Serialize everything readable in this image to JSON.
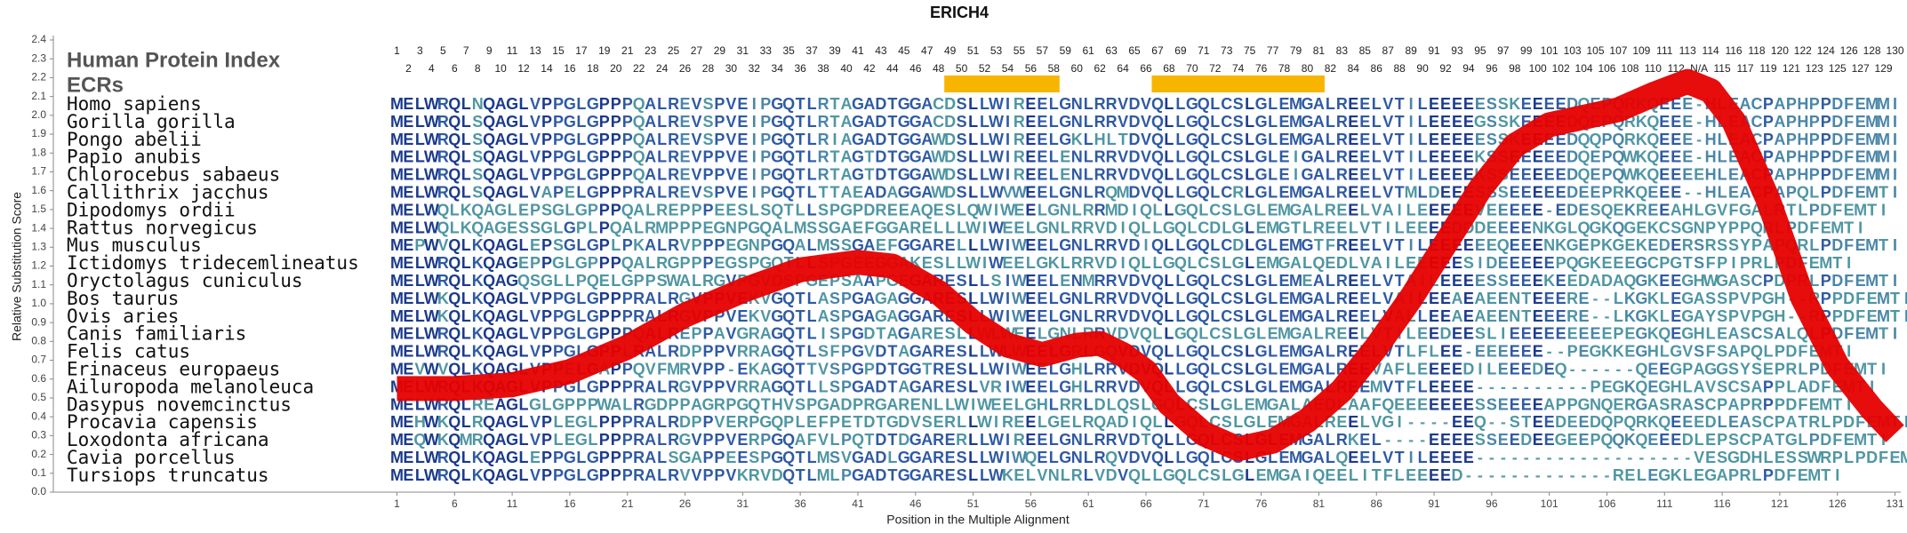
{
  "chart_data": {
    "type": "line",
    "title": "ERICH4",
    "ylabel": "Relative Substitution Score",
    "xlabel": "Position in the Multiple Alignment",
    "index_label": "Human Protein Index",
    "ecr_label": "ECRs",
    "ecr_color": "#f7b500",
    "ecrs": [
      [
        49,
        58
      ],
      [
        67,
        81
      ]
    ],
    "human_index": [
      1,
      2,
      3,
      4,
      5,
      6,
      7,
      8,
      9,
      10,
      11,
      12,
      13,
      14,
      15,
      16,
      17,
      18,
      19,
      20,
      21,
      22,
      23,
      24,
      25,
      26,
      27,
      28,
      29,
      30,
      31,
      32,
      33,
      34,
      35,
      36,
      37,
      38,
      39,
      40,
      41,
      42,
      43,
      44,
      45,
      46,
      47,
      48,
      49,
      50,
      51,
      52,
      53,
      54,
      55,
      56,
      57,
      58,
      59,
      60,
      61,
      62,
      63,
      64,
      65,
      66,
      67,
      68,
      69,
      70,
      71,
      72,
      73,
      74,
      75,
      76,
      77,
      78,
      79,
      80,
      81,
      82,
      83,
      84,
      85,
      86,
      87,
      88,
      89,
      90,
      91,
      92,
      93,
      94,
      95,
      96,
      97,
      98,
      99,
      100,
      101,
      102,
      103,
      104,
      105,
      106,
      107,
      108,
      109,
      110,
      111,
      112,
      113,
      "N/A",
      114,
      115,
      116,
      117,
      118,
      119,
      120,
      121,
      122,
      123,
      124,
      125,
      126,
      127,
      128,
      129,
      130
    ],
    "species": [
      {
        "name": "Homo sapiens",
        "sequence": "MELWRQLNQAGLVPPGLGPPPQALREVSPVEIPGQTLRTAGADTGGACDSLLWIREELGNLRRVDVQLLGQLCSLGLEMGALREELVTILEEEEESSKEEEEDQEPQRKQEEE-HLEACPAPHPPDFEMMI"
      },
      {
        "name": "Gorilla gorilla",
        "sequence": "MELWRQLSQAGLVPPGLGPPPQALREVSPVEIPGQTLRTAGADTGGACDSLLWIREELGNLRRVDVQLLGQLCSLGLEMGALREELVTILEEEEGSSKEEEEDQEPQRKQEEE-HLEACPAPHPPDFEMMI"
      },
      {
        "name": "Pongo abelii",
        "sequence": "MELWRQLSQAGLVPPGLGPPPQALREVSPVEIPGQTLRIAGADTGGAWDSLLWIREELGKLHLTDVQLLGQLCSLGLEMGALREELVTILEEEEESSKEEEEDQQPQRKQEEE-HLEACPAPHPPDFEMMI"
      },
      {
        "name": "Papio anubis",
        "sequence": "MELWRQLSQAGLVPPGLGPPPQALREVPPVEIPGQTLRTAGTDTGGAWDSLLWIREELENLRRVDVQLLGQLCSLGLEIGALREELVTILEEEEKSSEEEEEDQEPQWKQEEE-HLEACPAPHPPDFEMMI"
      },
      {
        "name": "Chlorocebus sabaeus",
        "sequence": "MELWRQLSQAGLVPPGLGPPPQALREVPPVEIPGQTLRTAGTDTGGAWDSLLWIREELENLRRVDVQLLGQLCSLGLEIGALREELVTILEEEEKSSEEEEEDQEPQWKQEEEEHLEACPAPHPPDFEMMI"
      },
      {
        "name": "Callithrix jacchus",
        "sequence": "MELWRQLSQAGLVAPELGPPPRALREVSPVEIPGQTLTTAEADAGGAWDSLLWVWEELGNLRQMDVQLLGQLCRLGLEMGALREELVTMLDEEESSSEEEEEDEEPRKQEEE--HLEACPAPQLPDFEMTI"
      },
      {
        "name": "Dipodomys ordii",
        "sequence": "MELWQLKQAGLEPSGLGPPPQALREPPPEESLSQTLLSPGPDREEAQESLQWIWEELGNLRRMDIQLLGQLCSLGLEMGALREELVAILEEEEEVEEEEE-EDESQEKREEAHLGVFGALRTLPDFEMTI"
      },
      {
        "name": "Rattus norvegicus",
        "sequence": "MELWQLKQAGESSGLGPLPQALRMPPPEGNPGQALMSSGAEFGGARELLLWIWEELGNLRRVDIQLLGQLCDLGLEMGTLREELVTILEEEEDDDEEEENKGLQGKQGEKCSGNPYPPQRLPDFEMTI"
      },
      {
        "name": "Mus musculus",
        "sequence": "MEPWVQLKQAGLEPSGLGPLPKALRVPPPEGNPGQALMSSGAEFGGARELLLWIWEELGNLRRVDIQLLGQLCDLGLEMGTFREELVTILEEEEEEQEEENKGEPKGEKEDERSRSSYPAPQRLPDFEMTI"
      },
      {
        "name": "Ictidomys tridecemlineatus",
        "sequence": "MELWRQLKQAGEPPGLGPPPQALRGPPPEGSPGQTLLSPGEEGGAKESLLWIWEELGKLRRVDIQLLGQLCSLGLEMGALQEDLVAILEEEEESIDEEEEEPQGKEEEGCPGTSFPIPRLPDFEMTI"
      },
      {
        "name": "Oryctolagus cuniculus",
        "sequence": "MELWRQLKQAGQSGLLPQELGPPSWALRGVPGVDSPGEPSAAPGEGARESLLSIWEELENMRRVDVQLLGQLCSLGLEMEALREELVTAILEEEESSEEEKEEDADAQGKEEGHWGASCPDPRLPDFEMTI"
      },
      {
        "name": "Bos taurus",
        "sequence": "MELWKQLKQAGLVPPGLGPPPRALRGVPPVEKVGQTLASPGAGAGGARESLLWIWEELGNLRRVDVQLLGQLCSLGLEMGALREELVAILEEAEAEENTEEERE--LKGKLEGASSPVPGH--RPPDFEMTI"
      },
      {
        "name": "Ovis aries",
        "sequence": "MELWKQLKQAGLVPPGLGPPPRALRGVPPVEKVGQTLASPGAGAGGARESLLWIWEELGNLRRVDVQLLGQLCSLGLEMGALREELVALLEEAEAEENTEEERE--LKGKLEGAYSPVPGH--RPPDFEMTI"
      },
      {
        "name": "Canis familiaris",
        "sequence": "MELWRQLKQAGLVPPGLGPPPQALREPPAVGRAGQTLISPGDTAGARESLLWLWEELGNLRRVDVQLLGQLCSLGLEMGALREELVTILEEDEESLIEEEEEEEEEPEGKQEGHLEASCSALQLPDFEMTI"
      },
      {
        "name": "Felis catus",
        "sequence": "MELWRQLKQAGLVPPGLGPPLRALRDPPPVRRAGQTLSFPGVDTAGARESLLWLWEELGRLGQVDVQLLGQLCSLGLEMGALREELVTLFLEE-EEEEEE--PEGKKEGHLGVSFSAPQLPDFEMTI"
      },
      {
        "name": "Erinaceus europaeus",
        "sequence": "MEVWVQLKQAGLVPPELGAPPQVFMRVPP-EKAGQTTVSPGPDTGGTRESLLWIWEELGHLRRVDVQLLGQLCSLGLEMGALREEVAFLEEEEDILEEEDEQ------QEEGPAGGSYSEPRLPDFEMTI"
      },
      {
        "name": "Ailuropoda melanoleuca",
        "sequence": "MELWRQLKQAGLVPPGLGPPPRALRGVPPVRRAGQTLLSPGADTAGARESLVRIWEELGHLRRVDVQLLGQLCSLGLEMGALREEMVTFLEEEE----------PEGKQEGHLAVSCSAPPLADFEMTI"
      },
      {
        "name": "Dasypus novemcinctus",
        "sequence": "MELWRQLREAGLGLGPPPWALRGDPPAGRPGQTHVSPGADPRGARENLLWIWEELGHLRRLDLQSLGQLCSLGLEMGALAEDLAAFQEEEEEEESSEEEEAPPGNQERGASRASCPAPRPPDFEMTI"
      },
      {
        "name": "Procavia capensis",
        "sequence": "MEHWKQLRQAGLVPLEGLPPPRALRDPPVERPGQPLEFPETDTGDVSERLLWIREELGELRQADIQLLGQLCSLGLEMGALREELVGI----EEQ--STEEDEEDQPQRKQEEEDLEASCPATRLPDFEMTI"
      },
      {
        "name": "Loxodonta africana",
        "sequence": "MEQWKQMRQAGLVPLEGLPPPRALRGVPPVERPGQAFVLPQTDTDGARERLLWIREELGNLRRVDTQLLGQLCSLGLEMGALRKEL----EEEESSEEDEEGEEPQQKQEEEDLEPSCPATGLPDFEMTI"
      },
      {
        "name": "Cavia porcellus",
        "sequence": "MELWRQLKQAGLEPPGLGPPPRALSGAPPEESPGQTLMSVGADLGGARESLLWIWQELGNLRQVDVQLLGQLCSLGLEMGALQEELVTILEEEE-------------------VESGDHLESSWRPLPDFEMTI"
      },
      {
        "name": "Tursiops truncatus",
        "sequence": "MELWRQLKQAGLVPPGLGPPPRALRVVPPVKRVDQTLMLPGADTGGARESLLWKELVNLRLVDVQLLGQLCSLGLEMGAIQEELITFLEEEED-------------RELEGKLEGAPRLPDFEMTI"
      }
    ],
    "series": [
      {
        "color": "#e60000",
        "x": [
          1,
          6,
          11,
          16,
          21,
          26,
          31,
          36,
          41,
          44,
          48,
          51,
          54,
          57,
          60,
          62,
          64,
          66,
          68,
          71,
          74,
          77,
          80,
          83,
          86,
          89,
          92,
          95,
          98,
          101,
          104,
          107,
          110,
          113,
          115,
          117,
          120,
          123,
          126,
          129,
          131
        ],
        "values": [
          0.55,
          0.55,
          0.57,
          0.64,
          0.77,
          0.94,
          1.07,
          1.18,
          1.22,
          1.2,
          1.06,
          0.9,
          0.78,
          0.73,
          0.78,
          0.79,
          0.73,
          0.64,
          0.47,
          0.31,
          0.23,
          0.27,
          0.38,
          0.54,
          0.77,
          1.03,
          1.32,
          1.61,
          1.84,
          1.95,
          1.99,
          2.03,
          2.11,
          2.18,
          2.13,
          1.97,
          1.55,
          1.03,
          0.67,
          0.44,
          0.31
        ]
      }
    ],
    "xlim": [
      0.5,
      131.5
    ],
    "ylim": [
      0,
      2.4
    ],
    "xticks": [
      1,
      6,
      11,
      16,
      21,
      26,
      31,
      36,
      41,
      46,
      51,
      56,
      61,
      66,
      71,
      76,
      81,
      86,
      91,
      96,
      101,
      106,
      111,
      116,
      121,
      126,
      131
    ],
    "yticks": [
      {
        "value": 0,
        "label": "0.0"
      },
      0.1,
      0.2,
      0.3,
      0.4,
      0.5,
      0.6,
      0.7,
      0.8,
      0.9,
      {
        "value": 1,
        "label": "1.0"
      },
      1.1,
      1.2,
      1.3,
      1.4,
      1.5,
      1.6,
      1.7,
      1.8,
      1.9,
      {
        "value": 2,
        "label": "2.0"
      },
      2.1,
      2.2,
      2.3,
      2.4
    ]
  }
}
